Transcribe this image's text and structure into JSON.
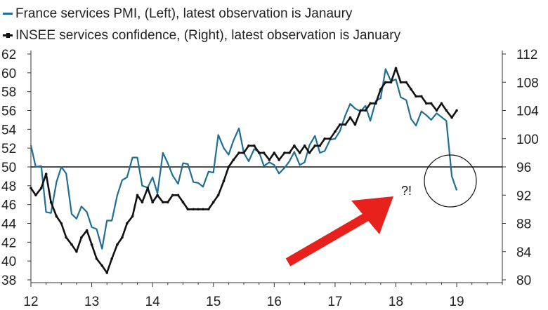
{
  "legend": [
    {
      "label": "France services PMI, (Left), latest observation is Janaury",
      "color": "#1f6f95",
      "marker": "none"
    },
    {
      "label": "INSEE services confidence, (Right), latest observation is January",
      "color": "#111111",
      "marker": "dot"
    }
  ],
  "chart_data": {
    "type": "line",
    "x_ticks": [
      "12",
      "13",
      "14",
      "15",
      "16",
      "17",
      "18",
      "19"
    ],
    "xlim": [
      2012,
      2019.75
    ],
    "left_axis": {
      "ylim": [
        38,
        62
      ],
      "ticks": [
        38,
        40,
        42,
        44,
        46,
        48,
        50,
        52,
        54,
        56,
        58,
        60,
        62
      ]
    },
    "right_axis": {
      "ylim": [
        80,
        112
      ],
      "ticks": [
        80,
        84,
        88,
        92,
        96,
        100,
        104,
        108,
        112
      ]
    },
    "reference_line": {
      "axis": "left",
      "value": 50
    },
    "series": [
      {
        "name": "France services PMI",
        "axis": "left",
        "color": "#1f6f95",
        "x": [
          2012.0,
          2012.08,
          2012.17,
          2012.25,
          2012.33,
          2012.42,
          2012.5,
          2012.58,
          2012.67,
          2012.75,
          2012.83,
          2012.92,
          2013.0,
          2013.08,
          2013.17,
          2013.25,
          2013.33,
          2013.42,
          2013.5,
          2013.58,
          2013.67,
          2013.75,
          2013.83,
          2013.92,
          2014.0,
          2014.08,
          2014.17,
          2014.25,
          2014.33,
          2014.42,
          2014.5,
          2014.58,
          2014.67,
          2014.75,
          2014.83,
          2014.92,
          2015.0,
          2015.08,
          2015.17,
          2015.25,
          2015.33,
          2015.42,
          2015.5,
          2015.58,
          2015.67,
          2015.75,
          2015.83,
          2015.92,
          2016.0,
          2016.08,
          2016.17,
          2016.25,
          2016.33,
          2016.42,
          2016.5,
          2016.58,
          2016.67,
          2016.75,
          2016.83,
          2016.92,
          2017.0,
          2017.08,
          2017.17,
          2017.25,
          2017.33,
          2017.42,
          2017.5,
          2017.58,
          2017.67,
          2017.75,
          2017.83,
          2017.92,
          2018.0,
          2018.08,
          2018.17,
          2018.25,
          2018.33,
          2018.42,
          2018.5,
          2018.58,
          2018.67,
          2018.75,
          2018.83,
          2018.92,
          2019.0
        ],
        "y": [
          52.3,
          50.0,
          50.1,
          45.2,
          45.1,
          48.4,
          50.0,
          49.3,
          45.0,
          44.5,
          45.8,
          45.2,
          43.6,
          43.4,
          41.3,
          44.3,
          44.3,
          47.0,
          48.6,
          48.9,
          51.0,
          51.0,
          48.0,
          47.8,
          48.9,
          47.2,
          51.5,
          50.4,
          49.1,
          48.2,
          50.4,
          50.3,
          48.4,
          48.3,
          47.9,
          49.5,
          49.4,
          53.4,
          52.0,
          51.3,
          52.8,
          54.1,
          51.5,
          50.6,
          51.9,
          51.6,
          50.1,
          50.5,
          50.2,
          49.3,
          49.9,
          50.6,
          51.6,
          50.2,
          50.5,
          52.3,
          53.3,
          51.5,
          51.7,
          52.9,
          53.0,
          53.8,
          55.5,
          56.7,
          56.2,
          55.9,
          56.5,
          54.9,
          57.0,
          57.3,
          60.4,
          59.1,
          59.3,
          57.4,
          57.1,
          55.1,
          54.4,
          55.9,
          55.5,
          55.0,
          55.7,
          55.3,
          54.9,
          49.0,
          47.5
        ]
      },
      {
        "name": "INSEE services confidence",
        "axis": "right",
        "color": "#111111",
        "x": [
          2012.0,
          2012.08,
          2012.17,
          2012.25,
          2012.33,
          2012.42,
          2012.5,
          2012.58,
          2012.67,
          2012.75,
          2012.83,
          2012.92,
          2013.0,
          2013.08,
          2013.17,
          2013.25,
          2013.33,
          2013.42,
          2013.5,
          2013.58,
          2013.67,
          2013.75,
          2013.83,
          2013.92,
          2014.0,
          2014.08,
          2014.17,
          2014.25,
          2014.33,
          2014.42,
          2014.5,
          2014.58,
          2014.67,
          2014.75,
          2014.83,
          2014.92,
          2015.0,
          2015.08,
          2015.17,
          2015.25,
          2015.33,
          2015.42,
          2015.5,
          2015.58,
          2015.67,
          2015.75,
          2015.83,
          2015.92,
          2016.0,
          2016.08,
          2016.17,
          2016.25,
          2016.33,
          2016.42,
          2016.5,
          2016.58,
          2016.67,
          2016.75,
          2016.83,
          2016.92,
          2017.0,
          2017.08,
          2017.17,
          2017.25,
          2017.33,
          2017.42,
          2017.5,
          2017.58,
          2017.67,
          2017.75,
          2017.83,
          2017.92,
          2018.0,
          2018.08,
          2018.17,
          2018.25,
          2018.33,
          2018.42,
          2018.5,
          2018.58,
          2018.67,
          2018.75,
          2018.83,
          2018.92,
          2019.0
        ],
        "y": [
          93,
          92,
          93,
          95,
          91,
          89,
          88,
          86,
          85,
          84,
          86,
          87,
          85,
          83,
          82,
          81,
          83,
          85,
          86,
          88,
          89,
          92,
          91,
          93,
          91,
          92,
          91,
          91,
          92,
          92,
          91,
          90,
          90,
          90,
          90,
          90,
          91,
          92,
          94,
          96,
          97,
          98,
          98,
          99,
          99,
          98,
          98,
          97,
          98,
          97,
          98,
          98,
          99,
          98,
          99,
          98,
          99,
          99,
          100,
          100,
          101,
          102,
          102,
          103,
          102,
          104,
          104,
          105,
          105,
          107,
          108,
          108,
          110,
          108,
          108,
          107,
          106,
          106,
          105,
          105,
          104,
          105,
          104,
          103,
          104
        ]
      }
    ],
    "annotations": [
      {
        "text": "?!",
        "color": "#111111"
      },
      {
        "type": "arrow",
        "color": "#e8211d"
      },
      {
        "type": "circle",
        "color": "#111111"
      }
    ]
  }
}
